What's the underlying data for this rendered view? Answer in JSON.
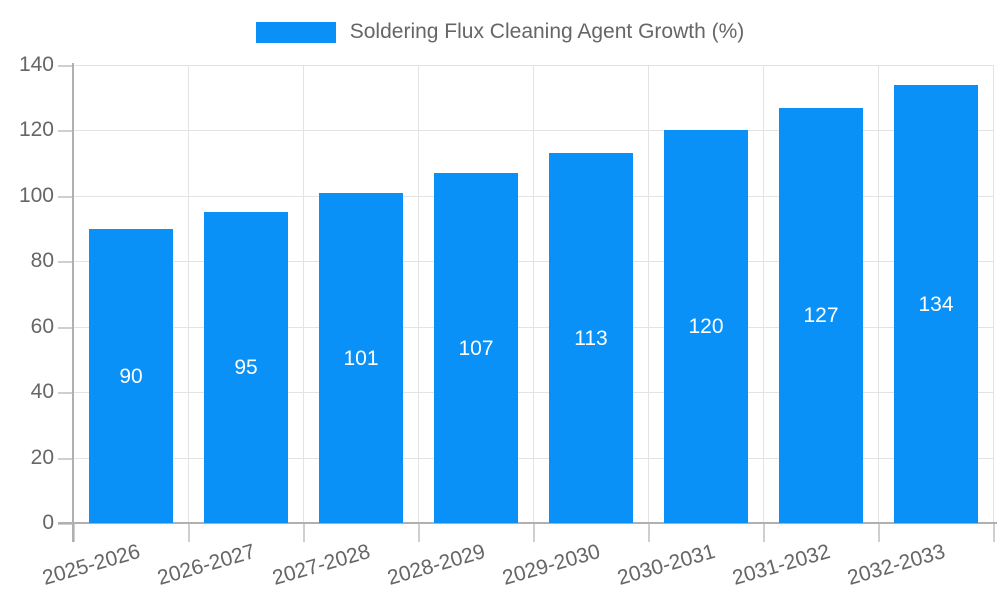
{
  "legend": {
    "label": "Soldering Flux Cleaning Agent Growth (%)",
    "swatch_color": "#0a91f8"
  },
  "chart_data": {
    "type": "bar",
    "title": "Soldering Flux Cleaning Agent Growth (%)",
    "categories": [
      "2025-2026",
      "2026-2027",
      "2027-2028",
      "2028-2029",
      "2029-2030",
      "2030-2031",
      "2031-2032",
      "2032-2033"
    ],
    "values": [
      90,
      95,
      101,
      107,
      113,
      120,
      127,
      134
    ],
    "series": [
      {
        "name": "Soldering Flux Cleaning Agent Growth (%)",
        "values": [
          90,
          95,
          101,
          107,
          113,
          120,
          127,
          134
        ]
      }
    ],
    "xlabel": "",
    "ylabel": "",
    "ylim": [
      0,
      140
    ],
    "yticks": [
      0,
      20,
      40,
      60,
      80,
      100,
      120,
      140
    ],
    "grid": true,
    "legend_position": "top-center",
    "value_labels_position": "inside-center",
    "x_label_rotation_deg": -16
  },
  "colors": {
    "bar": "#0a91f8",
    "bar_value_label": "#ffffff",
    "grid_line": "#e3e3e3",
    "tick_mark": "#cfcfcf",
    "axis_line": "#b0b0b0",
    "tick_label": "#666666",
    "legend_text": "#666666",
    "background": "#ffffff"
  }
}
